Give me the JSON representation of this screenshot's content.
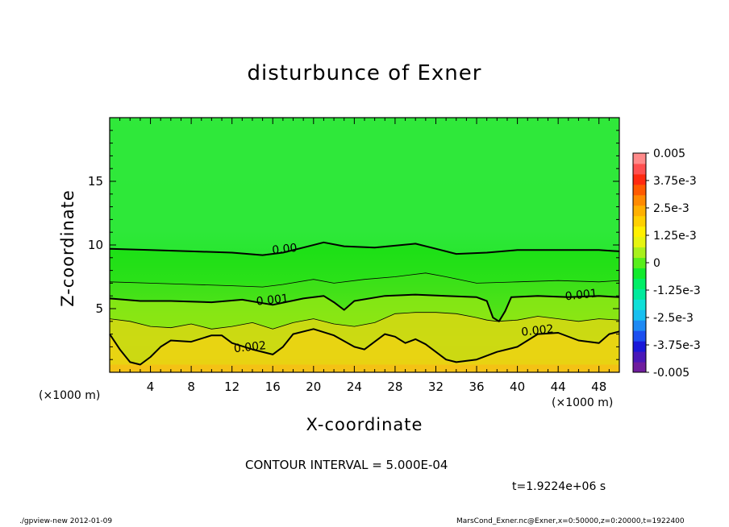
{
  "chart_data": {
    "type": "heatmap",
    "title": "disturbunce of Exner",
    "xlabel": "X-coordinate",
    "ylabel": "Z-coordinate",
    "x_unit_left": "(×1000 m)",
    "x_unit_right": "(×1000 m)",
    "xlim": [
      0,
      50
    ],
    "ylim": [
      0,
      20
    ],
    "x_ticks": [
      4,
      8,
      12,
      16,
      20,
      24,
      28,
      32,
      36,
      40,
      44,
      48
    ],
    "y_ticks": [
      5,
      10,
      15
    ],
    "contour_interval": "CONTOUR INTERVAL = 5.000E-04",
    "time_label": "t=1.9224e+06 s",
    "contour_labels": [
      {
        "text": "0.00",
        "x": 17.2,
        "y": 9.4
      },
      {
        "text": "0.001",
        "x": 16.0,
        "y": 5.4
      },
      {
        "text": "0.001",
        "x": 46.3,
        "y": 5.8
      },
      {
        "text": "0.002",
        "x": 13.8,
        "y": 1.7
      },
      {
        "text": "0.002",
        "x": 42.0,
        "y": 3.0
      }
    ],
    "contours": [
      {
        "level": 0.0,
        "bold": true,
        "points": [
          [
            0,
            9.7
          ],
          [
            4,
            9.6
          ],
          [
            8,
            9.5
          ],
          [
            12,
            9.4
          ],
          [
            15,
            9.2
          ],
          [
            17,
            9.4
          ],
          [
            19,
            9.8
          ],
          [
            21,
            10.2
          ],
          [
            23,
            9.9
          ],
          [
            26,
            9.8
          ],
          [
            30,
            10.1
          ],
          [
            32,
            9.7
          ],
          [
            34,
            9.3
          ],
          [
            37,
            9.4
          ],
          [
            40,
            9.6
          ],
          [
            44,
            9.6
          ],
          [
            48,
            9.6
          ],
          [
            50,
            9.5
          ]
        ]
      },
      {
        "level": 0.0005,
        "bold": false,
        "points": [
          [
            0,
            7.1
          ],
          [
            4,
            7.0
          ],
          [
            8,
            6.9
          ],
          [
            12,
            6.8
          ],
          [
            15,
            6.7
          ],
          [
            17,
            6.9
          ],
          [
            20,
            7.3
          ],
          [
            22,
            7.0
          ],
          [
            25,
            7.3
          ],
          [
            28,
            7.5
          ],
          [
            31,
            7.8
          ],
          [
            33,
            7.5
          ],
          [
            36,
            7.0
          ],
          [
            40,
            7.1
          ],
          [
            44,
            7.2
          ],
          [
            48,
            7.1
          ],
          [
            50,
            7.2
          ]
        ]
      },
      {
        "level": 0.001,
        "bold": true,
        "points": [
          [
            0,
            5.8
          ],
          [
            3,
            5.6
          ],
          [
            6,
            5.6
          ],
          [
            10,
            5.5
          ],
          [
            13,
            5.7
          ],
          [
            16,
            5.3
          ],
          [
            19,
            5.8
          ],
          [
            21,
            6.0
          ],
          [
            22,
            5.5
          ],
          [
            23,
            4.9
          ],
          [
            24,
            5.6
          ],
          [
            27,
            6.0
          ],
          [
            30,
            6.1
          ],
          [
            33,
            6.0
          ],
          [
            36,
            5.9
          ],
          [
            37,
            5.6
          ],
          [
            37.6,
            4.3
          ],
          [
            38.2,
            4.0
          ],
          [
            38.8,
            4.8
          ],
          [
            39.4,
            5.9
          ],
          [
            42,
            6.0
          ],
          [
            45,
            5.9
          ],
          [
            48,
            6.0
          ],
          [
            50,
            5.9
          ]
        ]
      },
      {
        "level": 0.0015,
        "bold": false,
        "points": [
          [
            0,
            4.2
          ],
          [
            2,
            4.0
          ],
          [
            4,
            3.6
          ],
          [
            6,
            3.5
          ],
          [
            8,
            3.8
          ],
          [
            10,
            3.4
          ],
          [
            12,
            3.6
          ],
          [
            14,
            3.9
          ],
          [
            16,
            3.4
          ],
          [
            18,
            3.9
          ],
          [
            20,
            4.2
          ],
          [
            22,
            3.8
          ],
          [
            24,
            3.6
          ],
          [
            26,
            3.9
          ],
          [
            28,
            4.6
          ],
          [
            30,
            4.7
          ],
          [
            32,
            4.7
          ],
          [
            34,
            4.6
          ],
          [
            36,
            4.3
          ],
          [
            37,
            4.1
          ],
          [
            38,
            4.0
          ],
          [
            40,
            4.1
          ],
          [
            42,
            4.4
          ],
          [
            44,
            4.2
          ],
          [
            46,
            4.0
          ],
          [
            48,
            4.2
          ],
          [
            50,
            4.1
          ]
        ]
      },
      {
        "level": 0.002,
        "bold": true,
        "points": [
          [
            0,
            3.0
          ],
          [
            1,
            1.8
          ],
          [
            2,
            0.8
          ],
          [
            3,
            0.6
          ],
          [
            4,
            1.2
          ],
          [
            5,
            2.0
          ],
          [
            6,
            2.5
          ],
          [
            8,
            2.4
          ],
          [
            10,
            2.9
          ],
          [
            11,
            2.9
          ],
          [
            12,
            2.3
          ],
          [
            14,
            1.8
          ],
          [
            16,
            1.4
          ],
          [
            17,
            2.0
          ],
          [
            18,
            3.0
          ],
          [
            20,
            3.4
          ],
          [
            22,
            2.9
          ],
          [
            24,
            2.0
          ],
          [
            25,
            1.8
          ],
          [
            26,
            2.4
          ],
          [
            27,
            3.0
          ],
          [
            28,
            2.8
          ],
          [
            29,
            2.3
          ],
          [
            30,
            2.6
          ],
          [
            31,
            2.2
          ],
          [
            32,
            1.6
          ],
          [
            33,
            1.0
          ],
          [
            34,
            0.8
          ],
          [
            36,
            1.0
          ],
          [
            38,
            1.6
          ],
          [
            40,
            2.0
          ],
          [
            42,
            3.0
          ],
          [
            44,
            3.1
          ],
          [
            46,
            2.5
          ],
          [
            48,
            2.3
          ],
          [
            49,
            3.0
          ],
          [
            50,
            3.2
          ]
        ]
      }
    ],
    "colorbar": {
      "tick_labels": [
        "0.005",
        "3.75e-3",
        "2.5e-3",
        "1.25e-3",
        "0",
        "-1.25e-3",
        "-2.5e-3",
        "-3.75e-3",
        "-0.005"
      ],
      "colors": [
        "#6f1d9e",
        "#4a18b8",
        "#1a18d8",
        "#1c4ff0",
        "#1e8af4",
        "#18c0f0",
        "#10e0d8",
        "#00ea9c",
        "#00ee66",
        "#12ea2c",
        "#58ee1c",
        "#a8f01c",
        "#e6f410",
        "#fff000",
        "#ffd000",
        "#ffb000",
        "#ff8a00",
        "#ff5a00",
        "#ff2a10",
        "#ff5050",
        "#ff8a8a"
      ]
    },
    "colors": {
      "upper": "#2ee83a",
      "mid": "#12e010",
      "low": "#f0ee08",
      "bottom": "#ffb218"
    }
  },
  "footer": {
    "left": "./gpview-new   2012-01-09",
    "right": "MarsCond_Exner.nc@Exner,x=0:50000,z=0:20000,t=1922400"
  }
}
